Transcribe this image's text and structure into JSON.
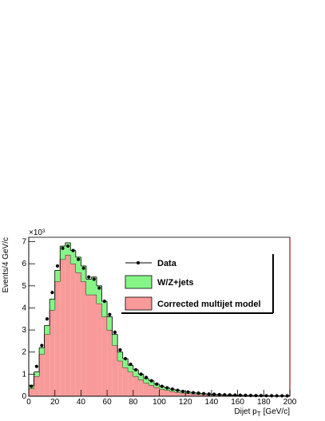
{
  "chart_data": {
    "type": "stacked_histogram",
    "ylabel": "Events/4 GeV/c",
    "y_multiplier_base": "×10",
    "y_multiplier_exp": "3",
    "xlabel_main": "Dijet p",
    "xlabel_sub": "T",
    "xlabel_unit": "[GeV/c]",
    "bins": [
      0,
      4,
      8,
      12,
      16,
      20,
      24,
      28,
      32,
      36,
      40,
      44,
      48,
      52,
      56,
      60,
      64,
      68,
      72,
      76,
      80,
      84,
      88,
      92,
      96,
      100,
      104,
      108,
      112,
      116,
      120,
      124,
      128,
      132,
      136,
      140,
      144,
      148,
      152,
      156,
      160,
      164,
      168,
      172,
      176,
      180,
      184,
      188,
      192,
      196,
      200
    ],
    "series": [
      {
        "name": "Corrected multijet model",
        "color": "#f99a9a",
        "values": [
          0.35,
          0.9,
          1.9,
          2.8,
          3.9,
          5.2,
          6.2,
          6.4,
          6.0,
          5.6,
          5.2,
          4.6,
          4.6,
          4.2,
          3.6,
          3.0,
          2.3,
          1.6,
          1.3,
          1.1,
          0.9,
          0.75,
          0.6,
          0.5,
          0.4,
          0.32,
          0.27,
          0.22,
          0.18,
          0.15,
          0.13,
          0.11,
          0.09,
          0.08,
          0.07,
          0.06,
          0.05,
          0.045,
          0.04,
          0.035,
          0.03,
          0.028,
          0.025,
          0.022,
          0.02,
          0.018,
          0.016,
          0.015,
          0.013,
          0.012
        ]
      },
      {
        "name": "W/Z+jets",
        "color": "#86f586",
        "values": [
          0.15,
          0.2,
          0.3,
          0.4,
          0.5,
          0.5,
          0.6,
          0.55,
          0.6,
          0.7,
          0.7,
          0.7,
          0.8,
          0.8,
          0.7,
          0.6,
          0.5,
          0.4,
          0.4,
          0.3,
          0.3,
          0.25,
          0.2,
          0.2,
          0.15,
          0.13,
          0.11,
          0.1,
          0.09,
          0.07,
          0.07,
          0.06,
          0.05,
          0.04,
          0.03,
          0.03,
          0.025,
          0.02,
          0.02,
          0.018,
          0.015,
          0.012,
          0.012,
          0.01,
          0.01,
          0.009,
          0.008,
          0.007,
          0.007,
          0.006
        ]
      }
    ],
    "data_series": {
      "name": "Data",
      "color": "#000000",
      "values": [
        0.45,
        1.35,
        2.3,
        3.5,
        4.7,
        5.9,
        6.7,
        6.8,
        6.6,
        6.2,
        5.8,
        5.4,
        5.3,
        4.9,
        4.3,
        3.7,
        2.9,
        2.1,
        1.7,
        1.45,
        1.2,
        1.0,
        0.85,
        0.7,
        0.55,
        0.45,
        0.38,
        0.32,
        0.27,
        0.22,
        0.19,
        0.16,
        0.14,
        0.12,
        0.1,
        0.09,
        0.075,
        0.065,
        0.06,
        0.05,
        0.045,
        0.04,
        0.035,
        0.03,
        0.03,
        0.025,
        0.022,
        0.02,
        0.02,
        0.018
      ]
    },
    "xlim": [
      0,
      200
    ],
    "ylim": [
      0,
      7.2
    ],
    "xticks": [
      0,
      20,
      40,
      60,
      80,
      100,
      120,
      140,
      160,
      180,
      200
    ],
    "yticks": [
      0,
      1,
      2,
      3,
      4,
      5,
      6,
      7
    ],
    "legend": "upper right"
  }
}
